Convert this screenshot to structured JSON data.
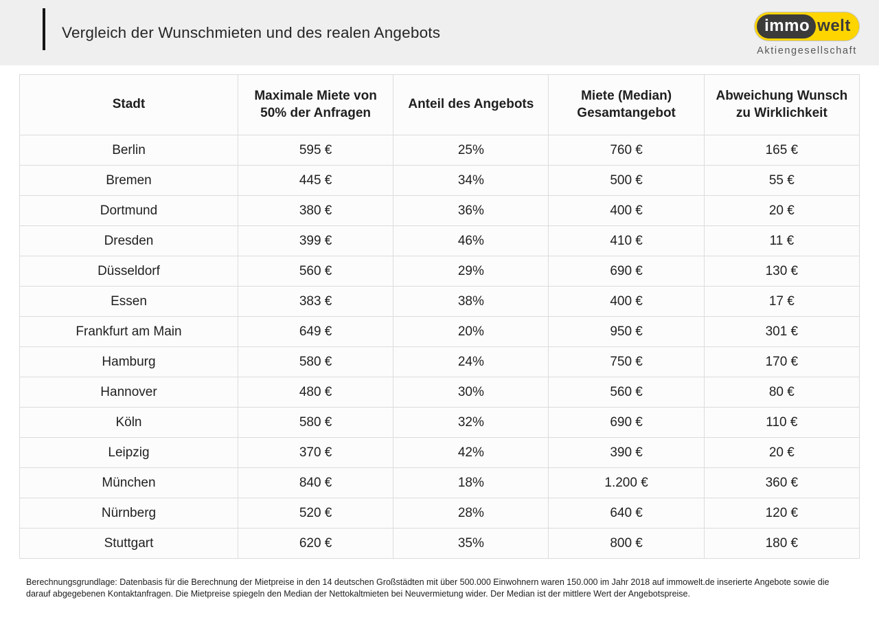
{
  "header": {
    "title": "Vergleich der Wunschmieten und des realen Angebots",
    "logo": {
      "part1": "immo",
      "part2": "welt",
      "subtitle": "Aktiengesellschaft"
    }
  },
  "colors": {
    "brand_yellow": "#ffd500",
    "brand_dark": "#3b3b3a",
    "band_gray": "#efefef",
    "accent_bar": "#161616"
  },
  "chart_data": {
    "type": "table",
    "title": "Vergleich der Wunschmieten und des realen Angebots",
    "columns": [
      "Stadt",
      "Maximale Miete von 50% der Anfragen",
      "Anteil des Angebots",
      "Miete (Median) Gesamtangebot",
      "Abweichung Wunsch zu Wirklichkeit"
    ],
    "column_keys": [
      "city",
      "max-rent-50pct",
      "offer-share",
      "median-rent",
      "deviation"
    ],
    "rows": [
      [
        "Berlin",
        "595 €",
        "25%",
        "760 €",
        "165 €"
      ],
      [
        "Bremen",
        "445 €",
        "34%",
        "500 €",
        "55 €"
      ],
      [
        "Dortmund",
        "380 €",
        "36%",
        "400 €",
        "20 €"
      ],
      [
        "Dresden",
        "399 €",
        "46%",
        "410 €",
        "11 €"
      ],
      [
        "Düsseldorf",
        "560 €",
        "29%",
        "690 €",
        "130 €"
      ],
      [
        "Essen",
        "383 €",
        "38%",
        "400 €",
        "17 €"
      ],
      [
        "Frankfurt am Main",
        "649 €",
        "20%",
        "950 €",
        "301 €"
      ],
      [
        "Hamburg",
        "580 €",
        "24%",
        "750 €",
        "170 €"
      ],
      [
        "Hannover",
        "480 €",
        "30%",
        "560 €",
        "80 €"
      ],
      [
        "Köln",
        "580 €",
        "32%",
        "690 €",
        "110 €"
      ],
      [
        "Leipzig",
        "370 €",
        "42%",
        "390 €",
        "20 €"
      ],
      [
        "München",
        "840 €",
        "18%",
        "1.200 €",
        "360 €"
      ],
      [
        "Nürnberg",
        "520 €",
        "28%",
        "640 €",
        "120 €"
      ],
      [
        "Stuttgart",
        "620 €",
        "35%",
        "800 €",
        "180 €"
      ]
    ]
  },
  "footer": {
    "text": "Berechnungsgrundlage: Datenbasis für die Berechnung der Mietpreise in den 14 deutschen Großstädten mit über 500.000 Einwohnern waren 150.000 im Jahr 2018 auf immowelt.de inserierte Angebote sowie die darauf abgegebenen Kontaktanfragen. Die Mietpreise spiegeln den Median der Nettokaltmieten bei Neuvermietung wider. Der Median ist der mittlere Wert der Angebotspreise."
  }
}
